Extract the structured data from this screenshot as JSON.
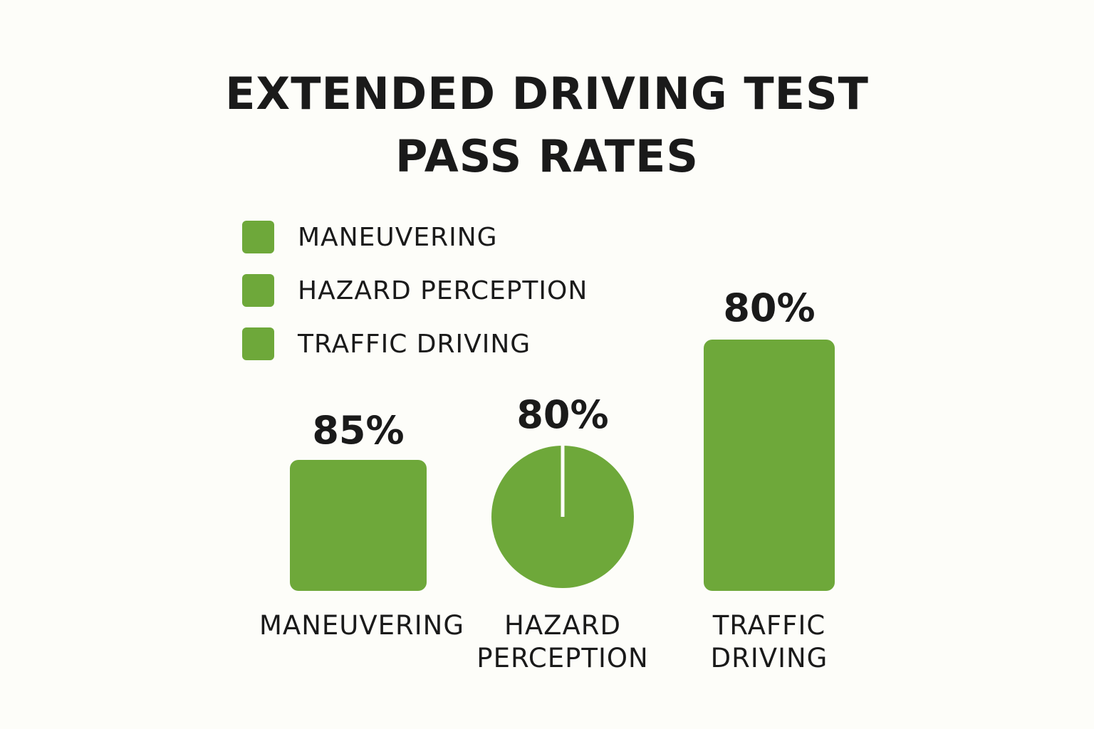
{
  "chart_data": {
    "type": "bar",
    "title": "EXTENDED DRIVING TEST PASS RATES",
    "title_lines": [
      "EXTENDED DRIVING TEST",
      "PASS RATES"
    ],
    "categories": [
      "MANEUVERING",
      "HAZARD PERCEPTION",
      "TRAFFIC DRIVING"
    ],
    "category_labels": [
      "MANEUVERING",
      "HAZARD\nPERCEPTION",
      "TRAFFIC\nDRIVING"
    ],
    "values": [
      85,
      80,
      80
    ],
    "value_labels": [
      "85%",
      "80%",
      "80%"
    ],
    "unit": "%",
    "legend": {
      "placement": "top-left",
      "entries": [
        "MANEUVERING",
        "HAZARD PERCEPTION",
        "TRAFFIC DRIVING"
      ]
    },
    "color": "#6ea83a",
    "grid": false
  }
}
